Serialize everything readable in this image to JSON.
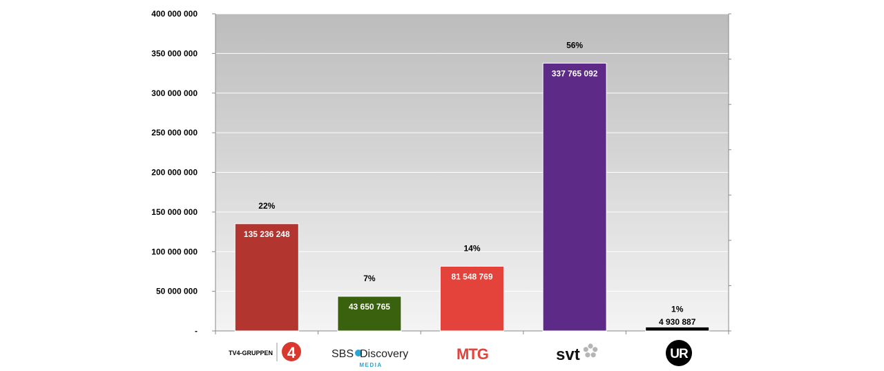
{
  "chart_data": {
    "type": "bar",
    "categories": [
      "TV4-GRUPPEN",
      "SBS Discovery MEDIA",
      "MTG",
      "svt",
      "UR"
    ],
    "values": [
      135236248,
      43650765,
      81548769,
      337765092,
      4930887
    ],
    "value_labels": [
      "135 236 248",
      "43 650 765",
      "81 548 769",
      "337 765 092",
      "4 930 887"
    ],
    "percent_labels": [
      "22%",
      "7%",
      "14%",
      "56%",
      "1%"
    ],
    "bar_colors": [
      "#b33530",
      "#3a620e",
      "#e3433a",
      "#5e2a88",
      "#000000"
    ],
    "value_label_colors": [
      "#ffffff",
      "#ffffff",
      "#ffffff",
      "#ffffff",
      "#000000"
    ],
    "y_ticks": [
      0,
      50000000,
      100000000,
      150000000,
      200000000,
      250000000,
      300000000,
      350000000,
      400000000
    ],
    "y_tick_labels": [
      "-",
      "50 000 000",
      "100 000 000",
      "150 000 000",
      "200 000 000",
      "250 000 000",
      "300 000 000",
      "350 000 000",
      "400 000 000"
    ],
    "ylim": [
      0,
      400000000
    ],
    "grid": true,
    "background": "gradient-gray"
  },
  "logos": {
    "tv4_text": "TV4-GRUPPEN",
    "tv4_mark": "4",
    "sbs_text": "SBS",
    "discovery_text": "Discovery",
    "media_text": "MEDIA",
    "mtg_text": "MTG",
    "svt_text": "svt",
    "ur_text": "UR"
  },
  "colors": {
    "tv4_red": "#d8382e",
    "media_blue": "#2aa4d5",
    "mtg_red": "#e3433a"
  }
}
